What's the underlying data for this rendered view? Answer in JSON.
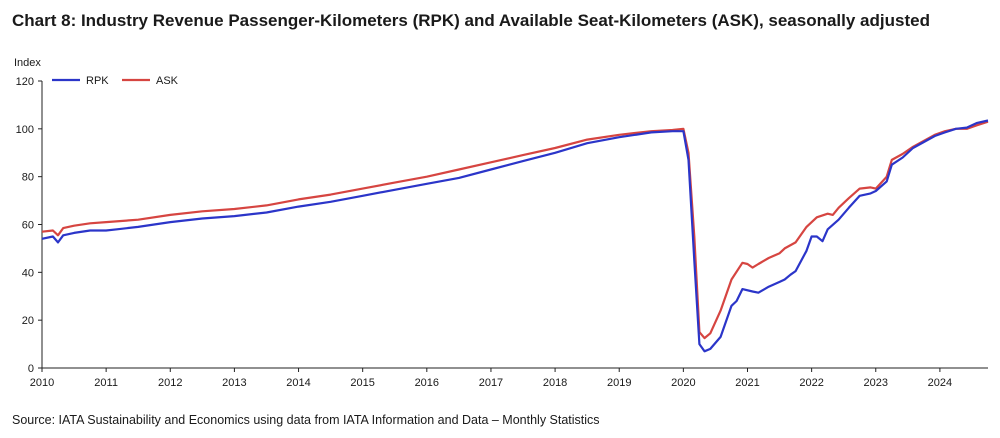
{
  "header": {
    "title": "Chart 8: Industry Revenue Passenger-Kilometers (RPK) and Available Seat-Kilometers (ASK), seasonally adjusted"
  },
  "footer": {
    "source": "Source: IATA Sustainability and Economics using data from IATA Information and Data – Monthly Statistics"
  },
  "chart_data": {
    "type": "line",
    "ylabel": "Index",
    "ylim": [
      0,
      120
    ],
    "yticks": [
      0,
      20,
      40,
      60,
      80,
      100,
      120
    ],
    "xlim": [
      2010,
      2024.75
    ],
    "xticks": [
      2010,
      2011,
      2012,
      2013,
      2014,
      2015,
      2016,
      2017,
      2018,
      2019,
      2020,
      2021,
      2022,
      2023,
      2024
    ],
    "grid": false,
    "legend": "top-left",
    "series": [
      {
        "name": "RPK",
        "color": "#2b35c9",
        "points": [
          [
            2010.0,
            54
          ],
          [
            2010.17,
            55
          ],
          [
            2010.25,
            52.5
          ],
          [
            2010.33,
            55.5
          ],
          [
            2010.5,
            56.5
          ],
          [
            2010.75,
            57.5
          ],
          [
            2011.0,
            57.5
          ],
          [
            2011.17,
            58
          ],
          [
            2011.5,
            59
          ],
          [
            2011.75,
            60
          ],
          [
            2012.0,
            61
          ],
          [
            2012.5,
            62.5
          ],
          [
            2013.0,
            63.5
          ],
          [
            2013.5,
            65
          ],
          [
            2014.0,
            67.5
          ],
          [
            2014.5,
            69.5
          ],
          [
            2015.0,
            72
          ],
          [
            2015.5,
            74.5
          ],
          [
            2016.0,
            77
          ],
          [
            2016.5,
            79.5
          ],
          [
            2017.0,
            83
          ],
          [
            2017.5,
            86.5
          ],
          [
            2018.0,
            90
          ],
          [
            2018.5,
            94
          ],
          [
            2019.0,
            96.5
          ],
          [
            2019.5,
            98.5
          ],
          [
            2019.83,
            99
          ],
          [
            2020.0,
            99
          ],
          [
            2020.08,
            87
          ],
          [
            2020.17,
            45
          ],
          [
            2020.25,
            10
          ],
          [
            2020.33,
            7
          ],
          [
            2020.42,
            8
          ],
          [
            2020.58,
            13
          ],
          [
            2020.75,
            26
          ],
          [
            2020.83,
            28
          ],
          [
            2020.92,
            33
          ],
          [
            2021.08,
            32
          ],
          [
            2021.17,
            31.5
          ],
          [
            2021.33,
            34
          ],
          [
            2021.5,
            36
          ],
          [
            2021.58,
            37
          ],
          [
            2021.67,
            39
          ],
          [
            2021.75,
            40.5
          ],
          [
            2021.92,
            49
          ],
          [
            2022.0,
            55
          ],
          [
            2022.08,
            55
          ],
          [
            2022.17,
            53
          ],
          [
            2022.25,
            58
          ],
          [
            2022.42,
            62
          ],
          [
            2022.58,
            67
          ],
          [
            2022.75,
            72
          ],
          [
            2022.92,
            73
          ],
          [
            2023.0,
            74
          ],
          [
            2023.17,
            78
          ],
          [
            2023.25,
            85
          ],
          [
            2023.42,
            88
          ],
          [
            2023.58,
            92
          ],
          [
            2023.75,
            94.5
          ],
          [
            2023.92,
            97
          ],
          [
            2024.08,
            98.5
          ],
          [
            2024.25,
            100
          ],
          [
            2024.42,
            100.5
          ],
          [
            2024.58,
            102.5
          ],
          [
            2024.75,
            103.5
          ]
        ]
      },
      {
        "name": "ASK",
        "color": "#d64541",
        "points": [
          [
            2010.0,
            57
          ],
          [
            2010.17,
            57.5
          ],
          [
            2010.25,
            55.5
          ],
          [
            2010.33,
            58.5
          ],
          [
            2010.5,
            59.5
          ],
          [
            2010.75,
            60.5
          ],
          [
            2011.0,
            61
          ],
          [
            2011.5,
            62
          ],
          [
            2012.0,
            64
          ],
          [
            2012.5,
            65.5
          ],
          [
            2013.0,
            66.5
          ],
          [
            2013.5,
            68
          ],
          [
            2014.0,
            70.5
          ],
          [
            2014.5,
            72.5
          ],
          [
            2015.0,
            75
          ],
          [
            2015.5,
            77.5
          ],
          [
            2016.0,
            80
          ],
          [
            2016.5,
            83
          ],
          [
            2017.0,
            86
          ],
          [
            2017.5,
            89
          ],
          [
            2018.0,
            92
          ],
          [
            2018.5,
            95.5
          ],
          [
            2019.0,
            97.5
          ],
          [
            2019.5,
            99
          ],
          [
            2019.83,
            99.5
          ],
          [
            2020.0,
            100
          ],
          [
            2020.08,
            90
          ],
          [
            2020.17,
            55
          ],
          [
            2020.25,
            15
          ],
          [
            2020.33,
            12.5
          ],
          [
            2020.42,
            14.5
          ],
          [
            2020.58,
            24
          ],
          [
            2020.75,
            37
          ],
          [
            2020.92,
            44
          ],
          [
            2021.0,
            43.5
          ],
          [
            2021.08,
            42
          ],
          [
            2021.17,
            43.5
          ],
          [
            2021.33,
            46
          ],
          [
            2021.5,
            48
          ],
          [
            2021.58,
            50
          ],
          [
            2021.75,
            52.5
          ],
          [
            2021.92,
            59
          ],
          [
            2022.08,
            63
          ],
          [
            2022.25,
            64.5
          ],
          [
            2022.33,
            64
          ],
          [
            2022.42,
            67
          ],
          [
            2022.58,
            71
          ],
          [
            2022.75,
            75
          ],
          [
            2022.92,
            75.5
          ],
          [
            2023.0,
            75
          ],
          [
            2023.17,
            80
          ],
          [
            2023.25,
            87
          ],
          [
            2023.42,
            89.5
          ],
          [
            2023.58,
            92.5
          ],
          [
            2023.75,
            95
          ],
          [
            2023.92,
            97.5
          ],
          [
            2024.08,
            99
          ],
          [
            2024.25,
            100
          ],
          [
            2024.42,
            100
          ],
          [
            2024.58,
            101.5
          ],
          [
            2024.75,
            103
          ]
        ]
      }
    ]
  }
}
